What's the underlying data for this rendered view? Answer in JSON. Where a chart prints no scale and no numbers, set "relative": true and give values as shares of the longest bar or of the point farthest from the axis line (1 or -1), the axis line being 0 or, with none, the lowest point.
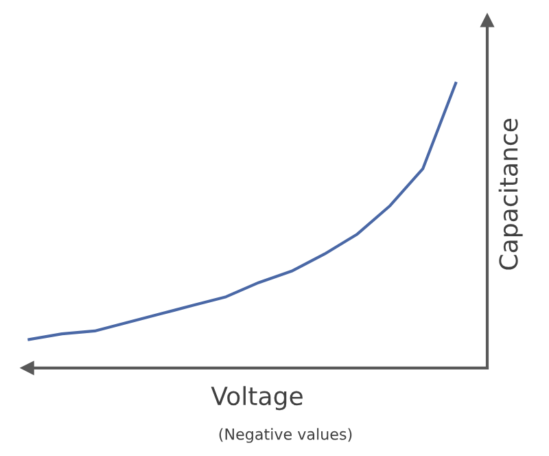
{
  "chart_data": {
    "type": "line",
    "relative": true,
    "xlabel": "Voltage",
    "ylabel": "Capacitance",
    "annotations": [
      "(Negative values)"
    ],
    "categories": [
      null,
      null,
      null,
      null,
      null,
      null,
      null,
      null,
      null,
      null,
      null,
      null,
      null,
      null
    ],
    "series": [
      {
        "color": "#4a68a6",
        "values": [
          0.1,
          0.12,
          0.13,
          0.16,
          0.19,
          0.22,
          0.25,
          0.3,
          0.34,
          0.4,
          0.47,
          0.57,
          0.7,
          1.0
        ]
      }
    ],
    "grid": false,
    "legend": false,
    "marker": "none",
    "line_style": "solid"
  }
}
